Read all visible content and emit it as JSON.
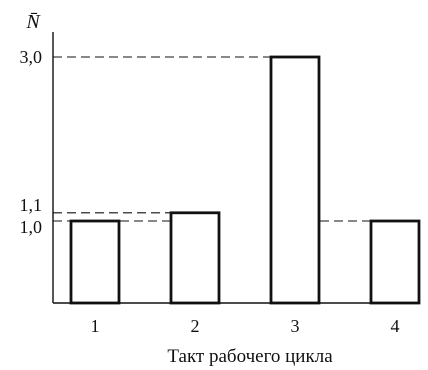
{
  "chart_data": {
    "type": "bar",
    "xlabel": "Такт рабочего цикла",
    "ylabel": "N̄",
    "categories": [
      "1",
      "2",
      "3",
      "4"
    ],
    "values": [
      1.0,
      1.1,
      3.0,
      1.0
    ],
    "ylim": [
      0,
      3.0
    ],
    "y_ticks": [
      {
        "value": 1.0,
        "label": "1,0"
      },
      {
        "value": 1.1,
        "label": "1,1"
      },
      {
        "value": 3.0,
        "label": "3,0"
      }
    ],
    "grid": false,
    "reference_lines": [
      1.0,
      1.1,
      3.0
    ],
    "colors": {
      "axis": "#111111",
      "bar_fill": "#ffffff",
      "bar_stroke": "#111111"
    }
  }
}
